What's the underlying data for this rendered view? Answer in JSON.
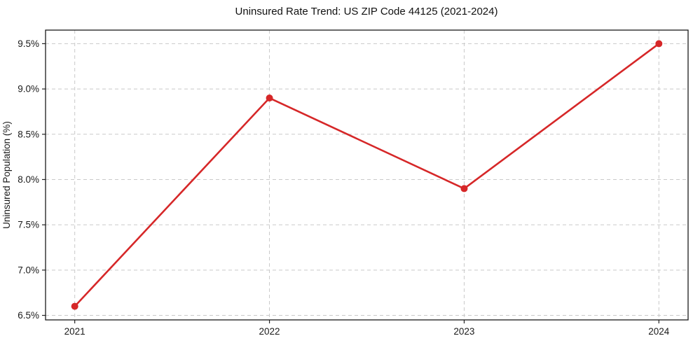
{
  "chart_data": {
    "type": "line",
    "title": "Uninsured Rate Trend: US ZIP Code 44125 (2021-2024)",
    "xlabel": "",
    "ylabel": "Uninsured Population (%)",
    "x": [
      2021,
      2022,
      2023,
      2024
    ],
    "x_tick_labels": [
      "2021",
      "2022",
      "2023",
      "2024"
    ],
    "series": [
      {
        "name": "Uninsured Rate",
        "values": [
          6.6,
          8.9,
          7.9,
          9.5
        ]
      }
    ],
    "y_ticks": [
      6.5,
      7.0,
      7.5,
      8.0,
      8.5,
      9.0,
      9.5
    ],
    "y_tick_labels": [
      "6.5%",
      "7.0%",
      "7.5%",
      "8.0%",
      "8.5%",
      "9.0%",
      "9.5%"
    ],
    "ylim": [
      6.45,
      9.65
    ],
    "xlim": [
      2020.85,
      2024.15
    ],
    "grid": true,
    "legend": "none",
    "marker": "circle",
    "line_color": "#d62728",
    "grid_color": "#c9c9c9",
    "spine_color": "#1a1a1a",
    "background_color": "#ffffff"
  }
}
